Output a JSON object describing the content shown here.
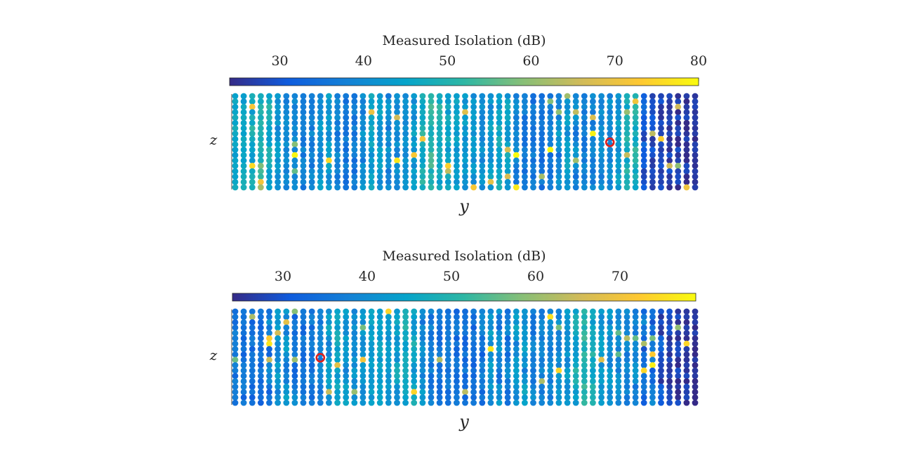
{
  "chart_data": [
    {
      "type": "heatmap",
      "colorbar": {
        "title": "Measured Isolation (dB)",
        "ticks": [
          30,
          40,
          50,
          60,
          70,
          80
        ],
        "range": [
          24,
          80
        ],
        "colormap": "parula",
        "location": "top"
      },
      "xlabel": "y",
      "ylabel": "z",
      "grid": {
        "columns": 55,
        "rows": 18,
        "marker": "filled dots"
      },
      "typical_value_range": [
        25,
        50
      ],
      "hotspot_value_range": [
        55,
        80
      ],
      "marker": {
        "shape": "circle",
        "color": "#e0201b",
        "column": 44,
        "row": 9
      }
    },
    {
      "type": "heatmap",
      "colorbar": {
        "title": "Measured Isolation (dB)",
        "ticks": [
          30,
          40,
          50,
          60,
          70
        ],
        "range": [
          24,
          79
        ],
        "colormap": "parula",
        "location": "top"
      },
      "xlabel": "y",
      "ylabel": "z",
      "grid": {
        "columns": 55,
        "rows": 18,
        "marker": "filled dots"
      },
      "typical_value_range": [
        25,
        48
      ],
      "hotspot_value_range": [
        55,
        78
      ],
      "marker": {
        "shape": "circle",
        "color": "#e0201b",
        "column": 10,
        "row": 9
      }
    }
  ]
}
